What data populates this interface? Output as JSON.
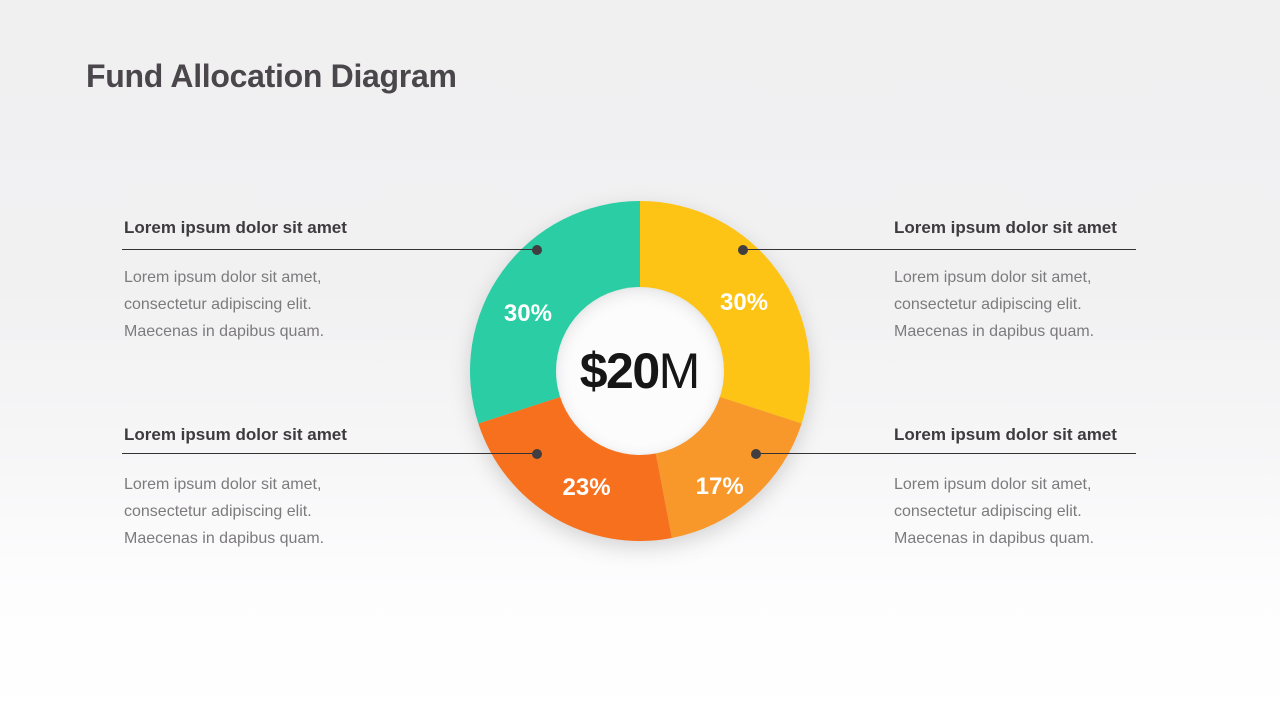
{
  "title": "Fund Allocation Diagram",
  "chart_data": {
    "type": "pie",
    "variant": "donut",
    "title": "Fund Allocation Diagram",
    "center_label": {
      "amount_bold": "$20",
      "unit": "M",
      "full_text": "$20M"
    },
    "start_angle": "12 o'clock, clockwise",
    "slices": [
      {
        "name": "yellow",
        "value": 30,
        "pct_label": "30%",
        "color": "#FDC315"
      },
      {
        "name": "light-orange",
        "value": 17,
        "pct_label": "17%",
        "color": "#F8982A"
      },
      {
        "name": "dark-orange",
        "value": 23,
        "pct_label": "23%",
        "color": "#F7701E"
      },
      {
        "name": "teal",
        "value": 30,
        "pct_label": "30%",
        "color": "#2BCEA4"
      }
    ],
    "legend": "none",
    "label_color": "#FFFFFF"
  },
  "callouts": [
    {
      "position": "top-left",
      "heading": "Lorem ipsum dolor sit amet",
      "body_lines": [
        "Lorem ipsum dolor sit amet,",
        "consectetur adipiscing elit.",
        "Maecenas in dapibus quam."
      ]
    },
    {
      "position": "top-right",
      "heading": "Lorem ipsum dolor sit amet",
      "body_lines": [
        "Lorem ipsum dolor sit amet,",
        "consectetur adipiscing elit.",
        "Maecenas in dapibus quam."
      ]
    },
    {
      "position": "bottom-left",
      "heading": "Lorem ipsum dolor sit amet",
      "body_lines": [
        "Lorem ipsum dolor sit amet,",
        "consectetur adipiscing elit.",
        "Maecenas in dapibus quam."
      ]
    },
    {
      "position": "bottom-right",
      "heading": "Lorem ipsum dolor sit amet",
      "body_lines": [
        "Lorem ipsum dolor sit amet,",
        "consectetur adipiscing elit.",
        "Maecenas in dapibus quam."
      ]
    }
  ]
}
